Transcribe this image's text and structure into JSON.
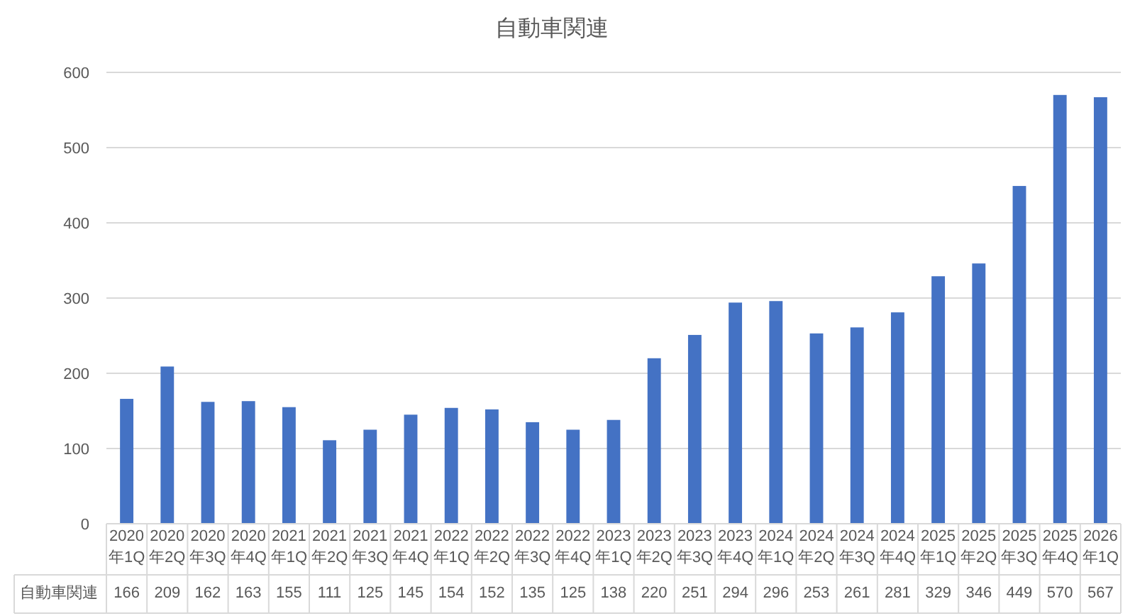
{
  "chart_data": {
    "type": "bar",
    "title": "自動車関連",
    "categories": [
      "2020年1Q",
      "2020年2Q",
      "2020年3Q",
      "2020年4Q",
      "2021年1Q",
      "2021年2Q",
      "2021年3Q",
      "2021年4Q",
      "2022年1Q",
      "2022年2Q",
      "2022年3Q",
      "2022年4Q",
      "2023年1Q",
      "2023年2Q",
      "2023年3Q",
      "2023年4Q",
      "2024年1Q",
      "2024年2Q",
      "2024年3Q",
      "2024年4Q",
      "2025年1Q",
      "2025年2Q",
      "2025年3Q",
      "2025年4Q",
      "2026年1Q"
    ],
    "series": [
      {
        "name": "自動車関連",
        "color": "#4472c4",
        "values": [
          166,
          209,
          162,
          163,
          155,
          111,
          125,
          145,
          154,
          152,
          135,
          125,
          138,
          220,
          251,
          294,
          296,
          253,
          261,
          281,
          329,
          346,
          449,
          570,
          567
        ]
      }
    ],
    "ylim": [
      0,
      600
    ],
    "yticks": [
      0,
      100,
      200,
      300,
      400,
      500,
      600
    ],
    "grid": "y",
    "data_labels": true
  }
}
